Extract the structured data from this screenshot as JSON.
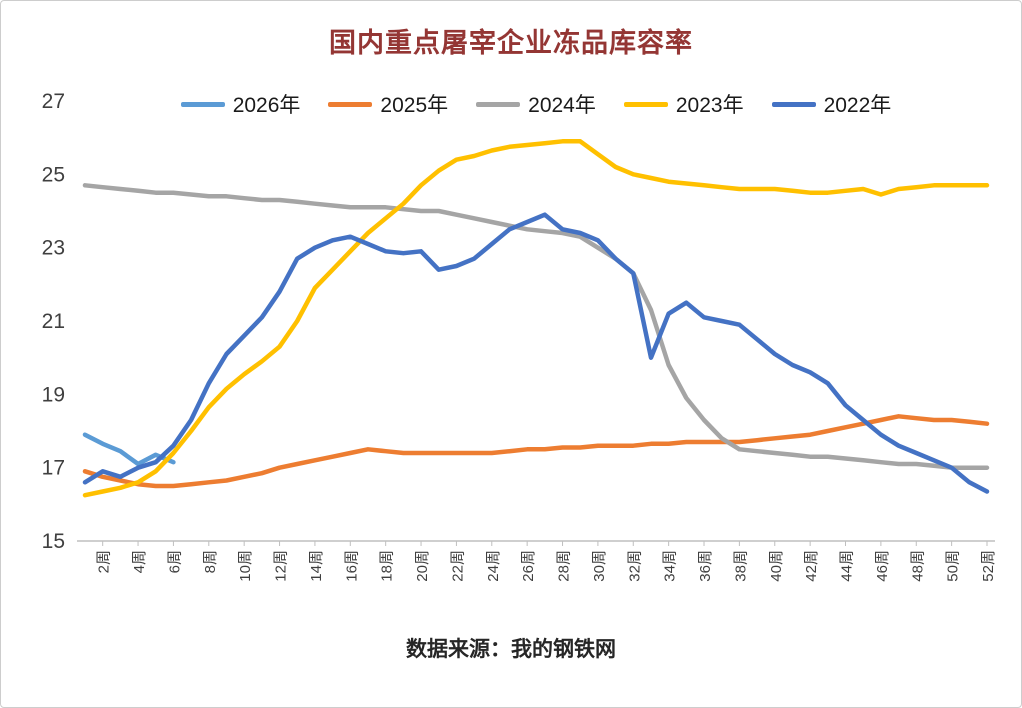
{
  "title": "国内重点屠宰企业冻品库容率",
  "source": "数据来源：我的钢铁网",
  "chart_data": {
    "type": "line",
    "x_unit": "周",
    "x_start": 1,
    "x_end": 52,
    "x_tick_labels": [
      "2周",
      "4周",
      "6周",
      "8周",
      "10周",
      "12周",
      "14周",
      "16周",
      "18周",
      "20周",
      "22周",
      "24周",
      "26周",
      "28周",
      "30周",
      "32周",
      "34周",
      "36周",
      "38周",
      "40周",
      "42周",
      "44周",
      "46周",
      "48周",
      "50周",
      "52周"
    ],
    "ylim": [
      15,
      27
    ],
    "y_ticks": [
      15,
      17,
      19,
      21,
      23,
      25,
      27
    ],
    "grid": false,
    "legend_position": "top",
    "axis_color": "#bfbfbf",
    "tick_label_color": "#3f3f3f",
    "series": [
      {
        "name": "2026年",
        "color": "#5B9BD5",
        "values": [
          17.9,
          17.65,
          17.45,
          17.1,
          17.35,
          17.15
        ]
      },
      {
        "name": "2025年",
        "color": "#ED7D31",
        "values": [
          16.9,
          16.75,
          16.65,
          16.55,
          16.5,
          16.5,
          16.55,
          16.6,
          16.65,
          16.75,
          16.85,
          17.0,
          17.1,
          17.2,
          17.3,
          17.4,
          17.5,
          17.45,
          17.4,
          17.4,
          17.4,
          17.4,
          17.4,
          17.4,
          17.45,
          17.5,
          17.5,
          17.55,
          17.55,
          17.6,
          17.6,
          17.6,
          17.65,
          17.65,
          17.7,
          17.7,
          17.7,
          17.7,
          17.75,
          17.8,
          17.85,
          17.9,
          18.0,
          18.1,
          18.2,
          18.3,
          18.4,
          18.35,
          18.3,
          18.3,
          18.25,
          18.2
        ]
      },
      {
        "name": "2024年",
        "color": "#A5A5A5",
        "values": [
          24.7,
          24.65,
          24.6,
          24.55,
          24.5,
          24.5,
          24.45,
          24.4,
          24.4,
          24.35,
          24.3,
          24.3,
          24.25,
          24.2,
          24.15,
          24.1,
          24.1,
          24.1,
          24.05,
          24.0,
          24.0,
          23.9,
          23.8,
          23.7,
          23.6,
          23.5,
          23.45,
          23.4,
          23.3,
          23.0,
          22.7,
          22.3,
          21.3,
          19.8,
          18.9,
          18.3,
          17.8,
          17.5,
          17.45,
          17.4,
          17.35,
          17.3,
          17.3,
          17.25,
          17.2,
          17.15,
          17.1,
          17.1,
          17.05,
          17.0,
          17.0,
          17.0
        ]
      },
      {
        "name": "2023年",
        "color": "#FFC000",
        "values": [
          16.25,
          16.35,
          16.45,
          16.6,
          16.9,
          17.4,
          18.0,
          18.65,
          19.15,
          19.55,
          19.9,
          20.3,
          21.0,
          21.9,
          22.4,
          22.9,
          23.4,
          23.8,
          24.2,
          24.7,
          25.1,
          25.4,
          25.5,
          25.65,
          25.75,
          25.8,
          25.85,
          25.9,
          25.9,
          25.55,
          25.2,
          25.0,
          24.9,
          24.8,
          24.75,
          24.7,
          24.65,
          24.6,
          24.6,
          24.6,
          24.55,
          24.5,
          24.5,
          24.55,
          24.6,
          24.45,
          24.6,
          24.65,
          24.7,
          24.7,
          24.7,
          24.7
        ]
      },
      {
        "name": "2022年",
        "color": "#4472C4",
        "values": [
          16.6,
          16.9,
          16.75,
          17.0,
          17.15,
          17.6,
          18.3,
          19.3,
          20.1,
          20.6,
          21.1,
          21.8,
          22.7,
          23.0,
          23.2,
          23.3,
          23.1,
          22.9,
          22.85,
          22.9,
          22.4,
          22.5,
          22.7,
          23.1,
          23.5,
          23.7,
          23.9,
          23.5,
          23.4,
          23.2,
          22.7,
          22.3,
          20.0,
          21.2,
          21.5,
          21.1,
          21.0,
          20.9,
          20.5,
          20.1,
          19.8,
          19.6,
          19.3,
          18.7,
          18.3,
          17.9,
          17.6,
          17.4,
          17.2,
          17.0,
          16.6,
          16.35
        ]
      }
    ]
  }
}
